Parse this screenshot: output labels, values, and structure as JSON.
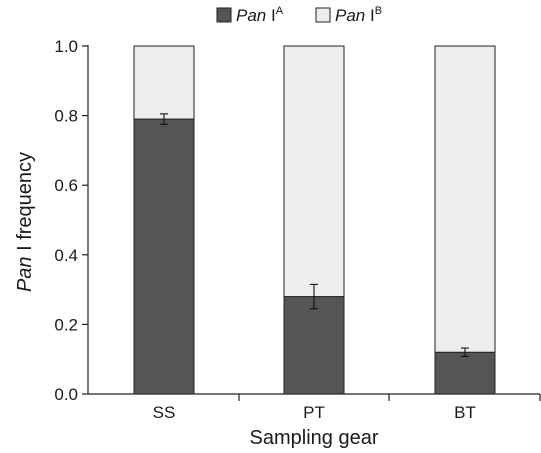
{
  "chart_data": {
    "type": "bar",
    "stacked": true,
    "categories": [
      "SS",
      "PT",
      "BT"
    ],
    "series": [
      {
        "name_italic": "Pan",
        "name_rest": " I",
        "name_sup": "A",
        "values": [
          0.79,
          0.28,
          0.12
        ],
        "error": [
          0.015,
          0.035,
          0.012
        ],
        "color": "#555555"
      },
      {
        "name_italic": "Pan",
        "name_rest": " I",
        "name_sup": "B",
        "values": [
          0.21,
          0.72,
          0.88
        ],
        "color": "#ededed"
      }
    ],
    "ylim": [
      0,
      1.0
    ],
    "yticks": [
      "0.0",
      "0.2",
      "0.4",
      "0.6",
      "0.8",
      "1.0"
    ],
    "ylabel_italic": "Pan",
    "ylabel_rest": " I frequency",
    "xlabel": "Sampling gear",
    "legend_position": "top"
  }
}
